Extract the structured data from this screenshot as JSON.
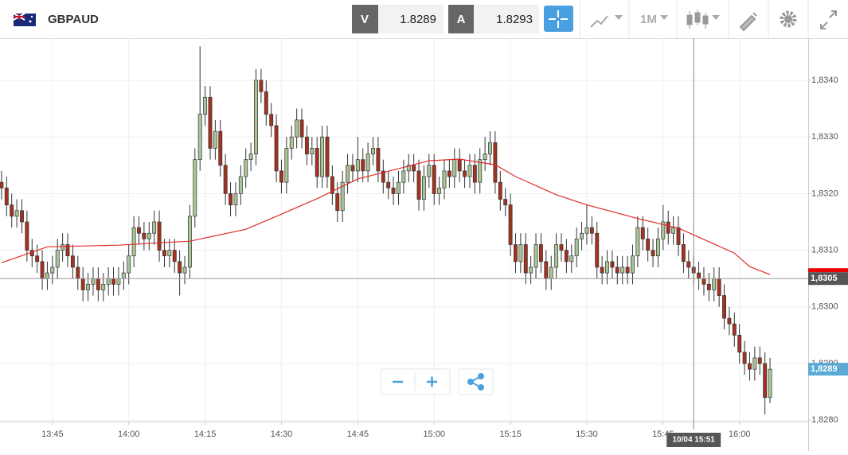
{
  "header": {
    "symbol": "GBPAUD",
    "bid_label": "V",
    "bid": "1.8289",
    "ask_label": "A",
    "ask": "1.8293",
    "timeframe": "1M"
  },
  "chart_data": {
    "type": "candlestick",
    "x": [
      815,
      816,
      817,
      818,
      819,
      820,
      821,
      822,
      823,
      824,
      825,
      826,
      827,
      828,
      829,
      830,
      831,
      832,
      833,
      834,
      835,
      836,
      837,
      838,
      839,
      840,
      841,
      842,
      843,
      844,
      845,
      846,
      847,
      848,
      849,
      850,
      851,
      852,
      853,
      854,
      855,
      856,
      857,
      858,
      859,
      860,
      861,
      862,
      863,
      864,
      865,
      866,
      867,
      868,
      869,
      870,
      871,
      872,
      873,
      874,
      875,
      876,
      877,
      878,
      879,
      880,
      881,
      882,
      883,
      884,
      885,
      886,
      887,
      888,
      889,
      890,
      891,
      892,
      893,
      894,
      895,
      896,
      897,
      898,
      899,
      900,
      901,
      902,
      903,
      904,
      905,
      906,
      907,
      908,
      909,
      910,
      911,
      912,
      913,
      914,
      915,
      916,
      917,
      918,
      919,
      920,
      921,
      922,
      923,
      924,
      925,
      926,
      927,
      928,
      929,
      930,
      931,
      932,
      933,
      934,
      935,
      936,
      937,
      938,
      939,
      940,
      941,
      942,
      943,
      944,
      945,
      946,
      947,
      948,
      949,
      950,
      951,
      952,
      953,
      954,
      955,
      956,
      957,
      958,
      959,
      960,
      961,
      962,
      963,
      964,
      965,
      966
    ],
    "open": [
      1.8322,
      1.8321,
      1.8318,
      1.8316,
      1.8317,
      1.8315,
      1.831,
      1.8309,
      1.8308,
      1.8305,
      1.8306,
      1.8307,
      1.831,
      1.8311,
      1.8309,
      1.8307,
      1.8305,
      1.8303,
      1.8304,
      1.8305,
      1.8303,
      1.8304,
      1.8305,
      1.8304,
      1.8305,
      1.8306,
      1.8309,
      1.8314,
      1.8313,
      1.8312,
      1.8313,
      1.8315,
      1.831,
      1.8309,
      1.831,
      1.8308,
      1.8306,
      1.8307,
      1.8316,
      1.8326,
      1.8334,
      1.8337,
      1.8328,
      1.8331,
      1.8325,
      1.832,
      1.8318,
      1.832,
      1.8323,
      1.8326,
      1.8327,
      1.834,
      1.8338,
      1.8334,
      1.8332,
      1.8324,
      1.8322,
      1.8328,
      1.833,
      1.8333,
      1.833,
      1.8327,
      1.8328,
      1.8323,
      1.833,
      1.8323,
      1.832,
      1.8317,
      1.8322,
      1.8325,
      1.8324,
      1.8326,
      1.8324,
      1.8327,
      1.8328,
      1.8324,
      1.8322,
      1.8321,
      1.832,
      1.8322,
      1.8324,
      1.8325,
      1.8324,
      1.8319,
      1.8323,
      1.8325,
      1.832,
      1.8321,
      1.8324,
      1.8323,
      1.8326,
      1.8324,
      1.8323,
      1.8325,
      1.8322,
      1.8326,
      1.8327,
      1.8329,
      1.8322,
      1.8319,
      1.8318,
      1.8311,
      1.8308,
      1.8311,
      1.8306,
      1.8307,
      1.8311,
      1.8308,
      1.8305,
      1.8307,
      1.8311,
      1.831,
      1.8308,
      1.8309,
      1.8312,
      1.8313,
      1.8314,
      1.8313,
      1.8307,
      1.8306,
      1.8308,
      1.8307,
      1.8306,
      1.8307,
      1.8306,
      1.8309,
      1.8314,
      1.8312,
      1.831,
      1.8309,
      1.8312,
      1.8315,
      1.8313,
      1.8314,
      1.8311,
      1.8308,
      1.8307,
      1.8306,
      1.8305,
      1.8304,
      1.8303,
      1.8305,
      1.8302,
      1.8298,
      1.8297,
      1.8295,
      1.8292,
      1.829,
      1.8289,
      1.8291,
      1.829,
      1.8284
    ],
    "high": [
      1.8324,
      1.8323,
      1.832,
      1.8319,
      1.8319,
      1.8317,
      1.8312,
      1.8311,
      1.831,
      1.8308,
      1.8309,
      1.8312,
      1.8313,
      1.8313,
      1.8311,
      1.8309,
      1.8307,
      1.8306,
      1.8307,
      1.8307,
      1.8306,
      1.8307,
      1.8307,
      1.8307,
      1.8308,
      1.8311,
      1.8316,
      1.8316,
      1.8315,
      1.8315,
      1.8317,
      1.8317,
      1.8312,
      1.8312,
      1.8312,
      1.831,
      1.8309,
      1.8318,
      1.8328,
      1.8346,
      1.8339,
      1.8339,
      1.8333,
      1.8333,
      1.8327,
      1.8322,
      1.8322,
      1.8325,
      1.8328,
      1.8329,
      1.8342,
      1.8342,
      1.834,
      1.8336,
      1.8334,
      1.8326,
      1.833,
      1.8332,
      1.8335,
      1.8335,
      1.8332,
      1.833,
      1.833,
      1.8332,
      1.8332,
      1.8325,
      1.8322,
      1.8324,
      1.8327,
      1.8327,
      1.833,
      1.8328,
      1.8329,
      1.833,
      1.833,
      1.8326,
      1.8324,
      1.8323,
      1.8324,
      1.8326,
      1.8327,
      1.8327,
      1.8326,
      1.8325,
      1.8327,
      1.8327,
      1.8323,
      1.8326,
      1.8326,
      1.8328,
      1.8328,
      1.8326,
      1.8327,
      1.8327,
      1.8328,
      1.833,
      1.8331,
      1.8331,
      1.8324,
      1.8321,
      1.832,
      1.8313,
      1.8313,
      1.8313,
      1.8309,
      1.8313,
      1.8313,
      1.831,
      1.8309,
      1.8313,
      1.8313,
      1.8312,
      1.8311,
      1.8314,
      1.8315,
      1.8318,
      1.8316,
      1.8315,
      1.8309,
      1.831,
      1.831,
      1.8309,
      1.8309,
      1.8309,
      1.8311,
      1.8316,
      1.8316,
      1.8314,
      1.8312,
      1.8314,
      1.8318,
      1.8317,
      1.8316,
      1.8316,
      1.8313,
      1.831,
      1.8309,
      1.8308,
      1.8307,
      1.8306,
      1.8307,
      1.8307,
      1.8304,
      1.83,
      1.8299,
      1.8297,
      1.8294,
      1.8292,
      1.8293,
      1.8293,
      1.8292,
      1.8291
    ],
    "low": [
      1.8319,
      1.8316,
      1.8314,
      1.8314,
      1.8313,
      1.8308,
      1.8307,
      1.8306,
      1.8303,
      1.8303,
      1.8304,
      1.8305,
      1.8308,
      1.8307,
      1.8305,
      1.8303,
      1.8301,
      1.8301,
      1.8302,
      1.8301,
      1.8301,
      1.8302,
      1.8302,
      1.8302,
      1.8303,
      1.8304,
      1.8307,
      1.8311,
      1.831,
      1.831,
      1.8311,
      1.8308,
      1.8307,
      1.8307,
      1.8306,
      1.8302,
      1.8304,
      1.8305,
      1.8314,
      1.8324,
      1.8332,
      1.8326,
      1.8326,
      1.8323,
      1.8318,
      1.8316,
      1.8316,
      1.8318,
      1.8321,
      1.8324,
      1.8325,
      1.8336,
      1.8332,
      1.833,
      1.8322,
      1.832,
      1.832,
      1.8326,
      1.8328,
      1.8328,
      1.8325,
      1.8325,
      1.8321,
      1.8321,
      1.8321,
      1.8318,
      1.8315,
      1.8315,
      1.832,
      1.8322,
      1.8322,
      1.8322,
      1.8322,
      1.8325,
      1.8322,
      1.832,
      1.8319,
      1.8318,
      1.8318,
      1.832,
      1.8322,
      1.8322,
      1.8317,
      1.8317,
      1.8321,
      1.8318,
      1.8318,
      1.8319,
      1.8321,
      1.8321,
      1.8322,
      1.8321,
      1.8321,
      1.832,
      1.832,
      1.8324,
      1.8325,
      1.832,
      1.8317,
      1.8316,
      1.8309,
      1.8306,
      1.8306,
      1.8304,
      1.8304,
      1.8305,
      1.8306,
      1.8303,
      1.8303,
      1.8305,
      1.8308,
      1.8306,
      1.8306,
      1.8307,
      1.831,
      1.8311,
      1.8311,
      1.8305,
      1.8304,
      1.8304,
      1.8305,
      1.8304,
      1.8304,
      1.8304,
      1.8304,
      1.8307,
      1.831,
      1.8308,
      1.8307,
      1.8307,
      1.831,
      1.8311,
      1.8311,
      1.8309,
      1.8306,
      1.8305,
      1.8304,
      1.8303,
      1.8302,
      1.8301,
      1.8301,
      1.83,
      1.8296,
      1.8295,
      1.8293,
      1.829,
      1.8288,
      1.8287,
      1.8287,
      1.8288,
      1.8281,
      1.8283
    ],
    "close": [
      1.8321,
      1.8318,
      1.8316,
      1.8317,
      1.8315,
      1.831,
      1.8309,
      1.8308,
      1.8305,
      1.8306,
      1.8307,
      1.831,
      1.8311,
      1.8309,
      1.8307,
      1.8305,
      1.8303,
      1.8304,
      1.8305,
      1.8303,
      1.8304,
      1.8305,
      1.8304,
      1.8305,
      1.8306,
      1.8309,
      1.8314,
      1.8313,
      1.8312,
      1.8313,
      1.8315,
      1.831,
      1.8309,
      1.831,
      1.8308,
      1.8306,
      1.8307,
      1.8316,
      1.8326,
      1.8334,
      1.8337,
      1.8328,
      1.8331,
      1.8325,
      1.832,
      1.8318,
      1.832,
      1.8323,
      1.8326,
      1.8327,
      1.834,
      1.8338,
      1.8334,
      1.8332,
      1.8324,
      1.8322,
      1.8328,
      1.833,
      1.8333,
      1.833,
      1.8327,
      1.8328,
      1.8323,
      1.833,
      1.8323,
      1.832,
      1.8317,
      1.8322,
      1.8325,
      1.8324,
      1.8326,
      1.8324,
      1.8327,
      1.8328,
      1.8324,
      1.8322,
      1.8321,
      1.832,
      1.8322,
      1.8324,
      1.8325,
      1.8324,
      1.8319,
      1.8323,
      1.8325,
      1.832,
      1.8321,
      1.8324,
      1.8323,
      1.8326,
      1.8324,
      1.8323,
      1.8325,
      1.8322,
      1.8326,
      1.8327,
      1.8329,
      1.8322,
      1.8319,
      1.8318,
      1.8311,
      1.8308,
      1.8311,
      1.8306,
      1.8307,
      1.8311,
      1.8308,
      1.8305,
      1.8307,
      1.8311,
      1.831,
      1.8308,
      1.8309,
      1.8312,
      1.8313,
      1.8314,
      1.8313,
      1.8307,
      1.8306,
      1.8308,
      1.8307,
      1.8306,
      1.8307,
      1.8306,
      1.8309,
      1.8314,
      1.8312,
      1.831,
      1.8309,
      1.8312,
      1.8315,
      1.8313,
      1.8314,
      1.8311,
      1.8308,
      1.8307,
      1.8306,
      1.8305,
      1.8304,
      1.8303,
      1.8305,
      1.8302,
      1.8298,
      1.8297,
      1.8295,
      1.8292,
      1.829,
      1.8289,
      1.8291,
      1.829,
      1.8284,
      1.8289
    ],
    "up_color": "#a9c597",
    "down_color": "#a3321f",
    "ma": {
      "color": "#e02b2b",
      "x": [
        815,
        824,
        838,
        852,
        863,
        869,
        877,
        885,
        893,
        899,
        905,
        912,
        916,
        924,
        930,
        940,
        948,
        952,
        959,
        962,
        966
      ],
      "values": [
        1.83078,
        1.83106,
        1.83109,
        1.83116,
        1.83137,
        1.8316,
        1.83191,
        1.83226,
        1.83244,
        1.83258,
        1.83261,
        1.83251,
        1.8323,
        1.83198,
        1.8318,
        1.83156,
        1.83139,
        1.83123,
        1.83095,
        1.83071,
        1.83057
      ]
    },
    "xlim": [
      814.7,
      973.5
    ],
    "xticks": [
      {
        "value": 825,
        "label": "13:45"
      },
      {
        "value": 840,
        "label": "14:00"
      },
      {
        "value": 855,
        "label": "14:15"
      },
      {
        "value": 870,
        "label": "14:30"
      },
      {
        "value": 885,
        "label": "14:45"
      },
      {
        "value": 900,
        "label": "15:00"
      },
      {
        "value": 915,
        "label": "15:15"
      },
      {
        "value": 930,
        "label": "15:30"
      },
      {
        "value": 945,
        "label": "15:45"
      },
      {
        "value": 960,
        "label": "16:00"
      }
    ],
    "ylim": [
      1.827975,
      1.834744
    ],
    "yticks": [
      {
        "value": 1.828,
        "label": "1,8280"
      },
      {
        "value": 1.829,
        "label": "1,8290"
      },
      {
        "value": 1.83,
        "label": "1,8300"
      },
      {
        "value": 1.831,
        "label": "1,8310"
      },
      {
        "value": 1.832,
        "label": "1,8320"
      },
      {
        "value": 1.833,
        "label": "1,8330"
      },
      {
        "value": 1.834,
        "label": "1,8340"
      }
    ],
    "grid": true,
    "price_lines": [
      {
        "value": 1.8305,
        "label": "1,8305",
        "color": "#555555"
      },
      {
        "value": 1.8289,
        "label": "1,8289",
        "color": "#5aa9d6"
      }
    ],
    "crosshair": {
      "x": 951,
      "label": "10/04 15:51"
    }
  }
}
